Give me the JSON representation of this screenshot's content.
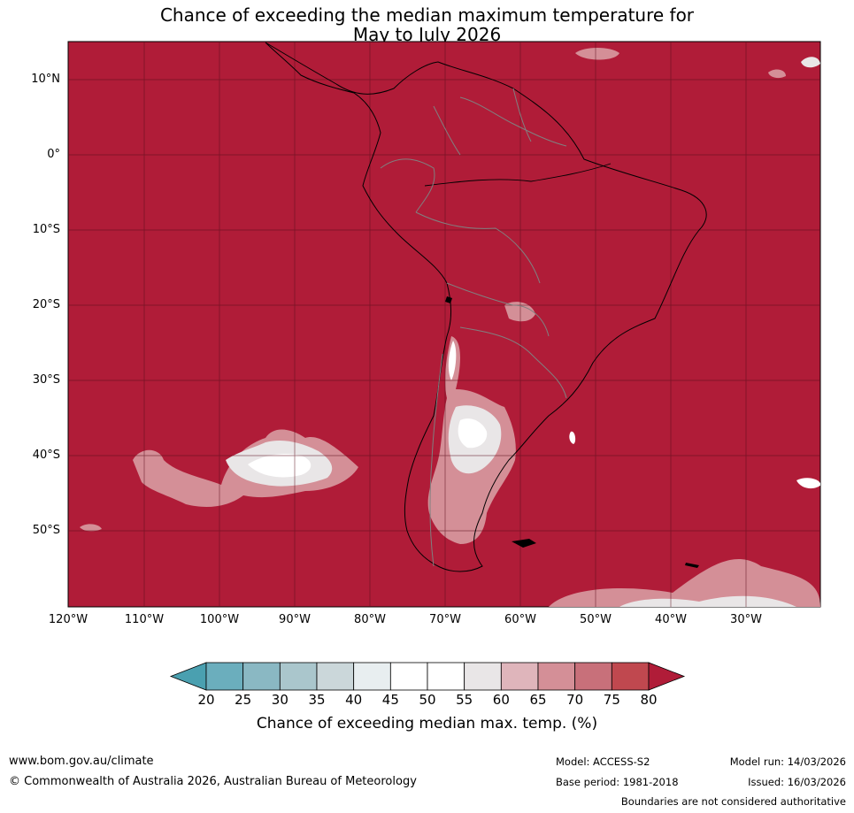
{
  "title_line1": "Chance of exceeding the median maximum temperature for",
  "title_line2": "May to July 2026",
  "latitude_labels": [
    "10°N",
    "0°",
    "10°S",
    "20°S",
    "30°S",
    "40°S",
    "50°S"
  ],
  "longitude_labels": [
    "120°W",
    "110°W",
    "100°W",
    "90°W",
    "80°W",
    "70°W",
    "60°W",
    "50°W",
    "40°W",
    "30°W"
  ],
  "colorbar": {
    "ticks": [
      "20",
      "25",
      "30",
      "35",
      "40",
      "45",
      "50",
      "55",
      "60",
      "65",
      "70",
      "75",
      "80"
    ],
    "colors": [
      "#4aa0b0",
      "#6baebd",
      "#8ab8c3",
      "#aac6cc",
      "#cbd7da",
      "#e8eef0",
      "#ffffff",
      "#ffffff",
      "#e9e6e7",
      "#dfb5bb",
      "#d48f97",
      "#c8707a",
      "#c0484f",
      "#b01c38"
    ],
    "label": "Chance of exceeding median max. temp. (%)"
  },
  "map_colors": {
    "dominant": "#b01c38"
  },
  "footer": {
    "url": "www.bom.gov.au/climate",
    "copyright": "© Commonwealth of Australia 2026, Australian Bureau of Meteorology",
    "model": "Model: ACCESS-S2",
    "model_run": "Model run: 14/03/2026",
    "base_period": "Base period: 1981-2018",
    "issued": "Issued: 16/03/2026",
    "boundaries_note": "Boundaries are not considered authoritative"
  }
}
